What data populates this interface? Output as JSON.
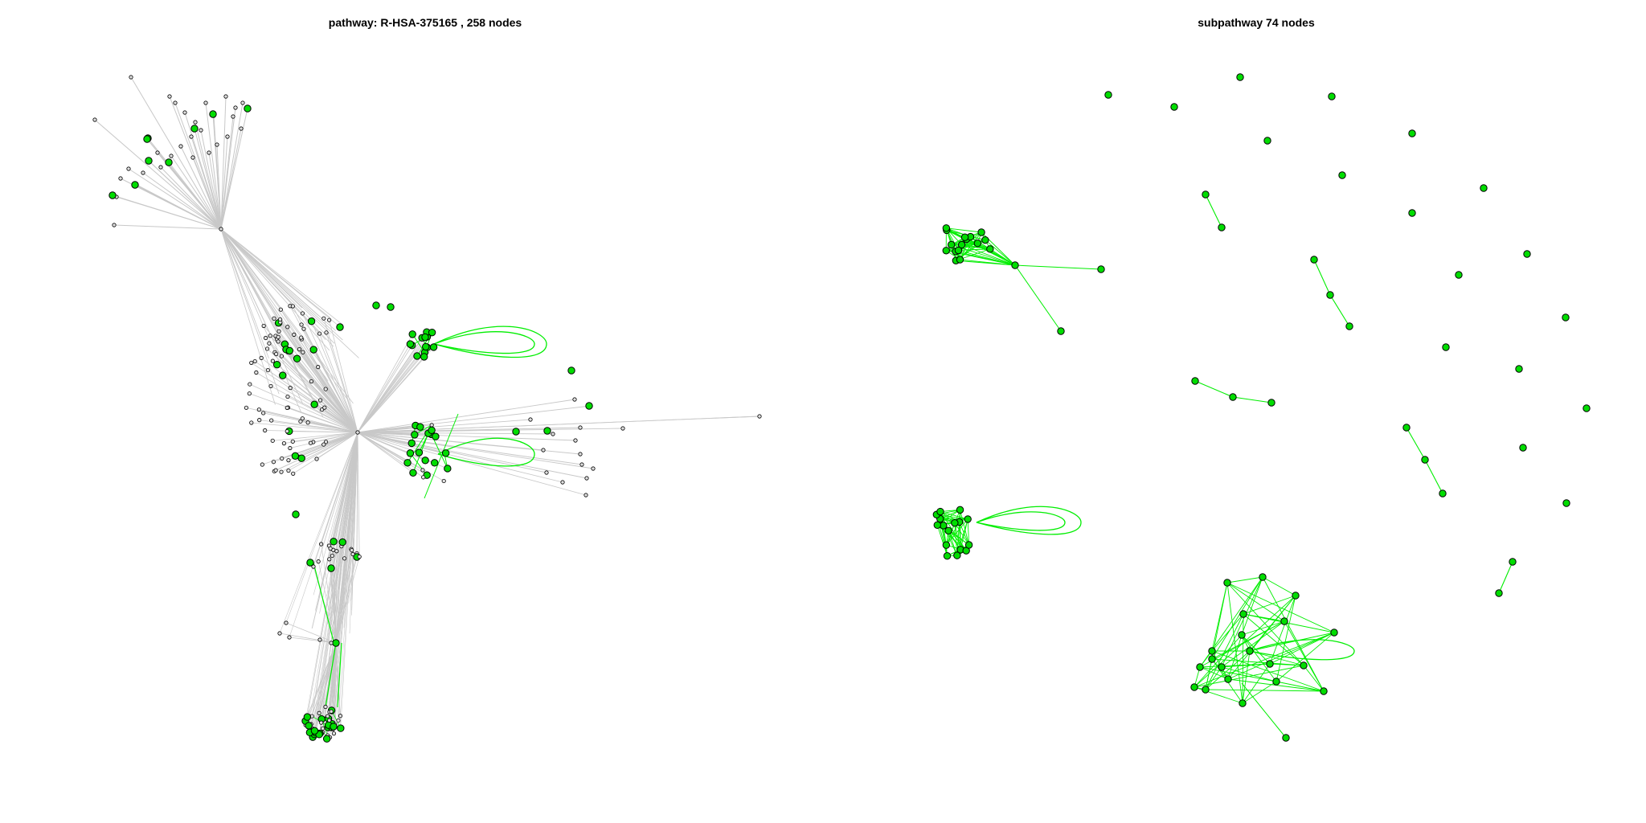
{
  "panels": [
    {
      "title": "pathway: R-HSA-375165 , 258 nodes"
    },
    {
      "title": "subpathway 74 nodes"
    }
  ],
  "colors": {
    "background": "#ffffff",
    "gray_edge": "#c8c8c8",
    "green_edge": "#00ee00",
    "green_node": "#00dd00",
    "gray_node": "#e0e0e0",
    "node_stroke": "#000000"
  }
}
